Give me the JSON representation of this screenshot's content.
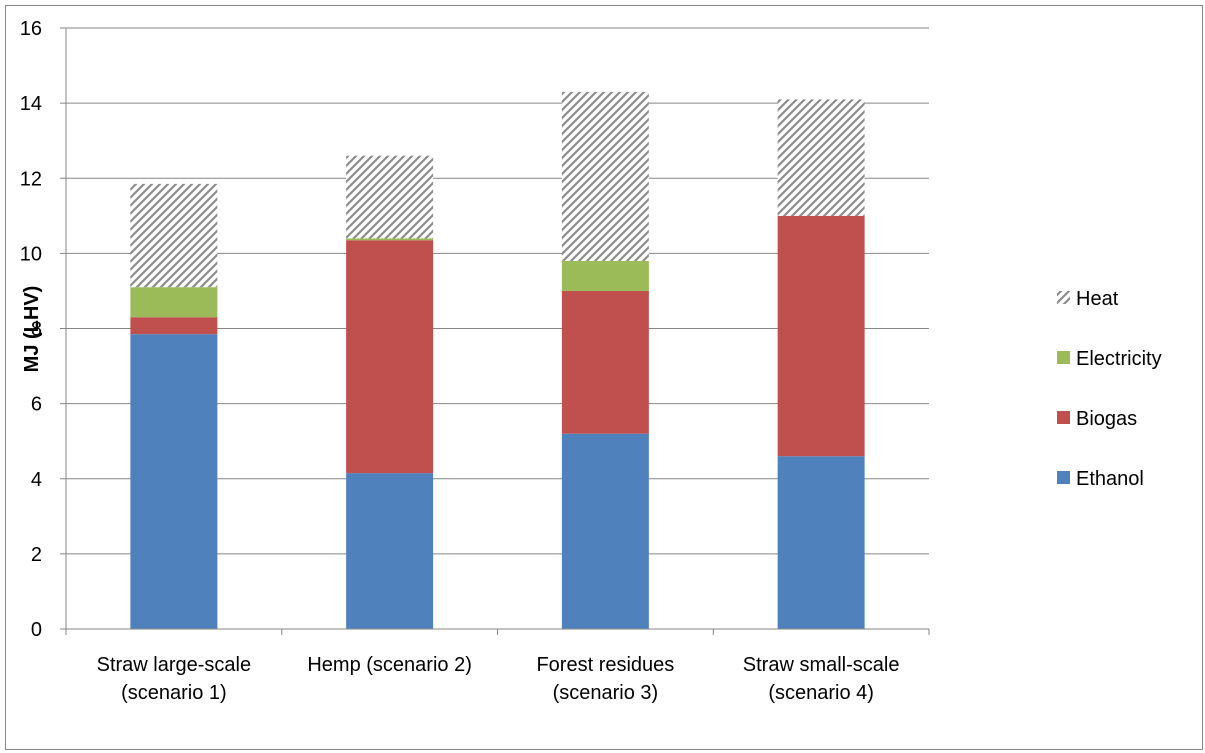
{
  "chart_data": {
    "type": "bar",
    "stacked": true,
    "categories": [
      [
        "Straw large-scale",
        "(scenario 1)"
      ],
      [
        "Hemp (scenario 2)"
      ],
      [
        "Forest residues",
        "(scenario 3)"
      ],
      [
        "Straw small-scale",
        "(scenario 4)"
      ]
    ],
    "series": [
      {
        "name": "Ethanol",
        "color": "#4F81BD",
        "pattern": "solid",
        "values": [
          7.85,
          4.15,
          5.2,
          4.6
        ]
      },
      {
        "name": "Biogas",
        "color": "#C0504D",
        "pattern": "solid",
        "values": [
          0.45,
          6.2,
          3.8,
          6.4
        ]
      },
      {
        "name": "Electricity",
        "color": "#9BBB59",
        "pattern": "solid",
        "values": [
          0.8,
          0.05,
          0.8,
          0.0
        ]
      },
      {
        "name": "Heat",
        "color": "#A6A6A6",
        "pattern": "diagonal-hatch",
        "values": [
          2.75,
          2.2,
          4.5,
          3.1
        ]
      }
    ],
    "ylabel": "MJ (LHV)",
    "xlabel": "",
    "ylim": [
      0,
      16
    ],
    "yticks": [
      0,
      2,
      4,
      6,
      8,
      10,
      12,
      14,
      16
    ],
    "grid": true,
    "legend_placement": "right",
    "legend_order": [
      "Heat",
      "Electricity",
      "Biogas",
      "Ethanol"
    ]
  }
}
